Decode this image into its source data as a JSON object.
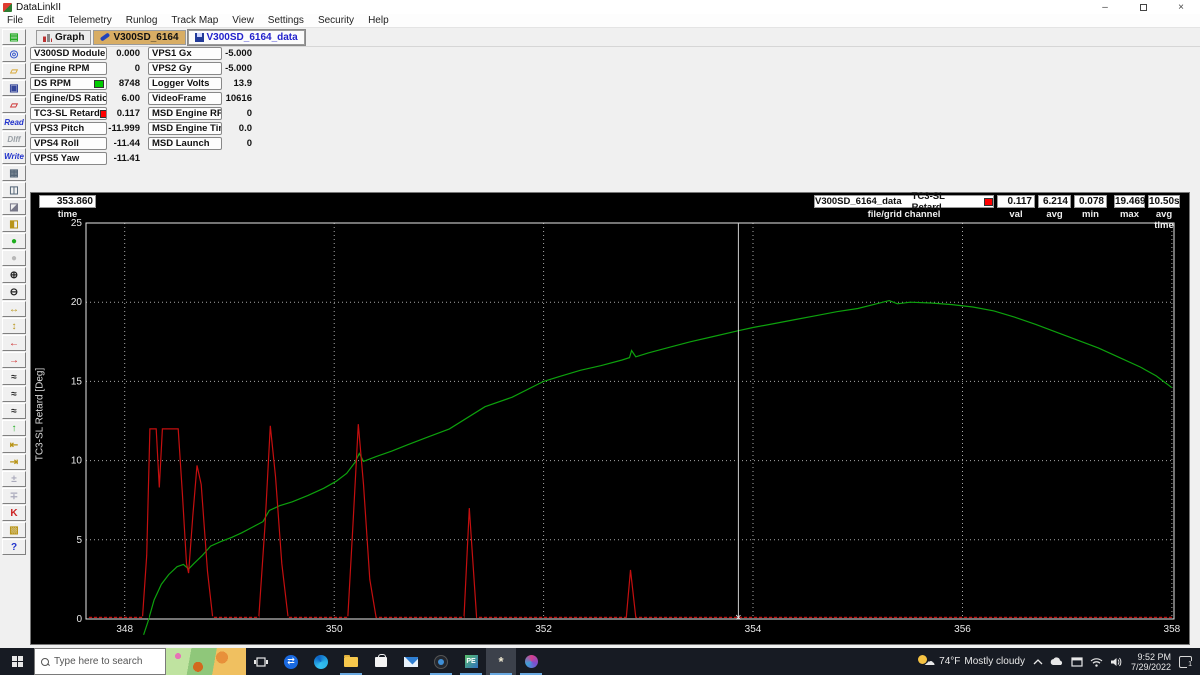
{
  "window": {
    "title": "DataLinkII",
    "minimize": "–",
    "restore": "restore",
    "close": "×"
  },
  "menu": {
    "items": [
      "File",
      "Edit",
      "Telemetry",
      "Runlog",
      "Track Map",
      "View",
      "Settings",
      "Security",
      "Help"
    ]
  },
  "tabs": {
    "graph": "Graph",
    "config": "V300SD_6164",
    "data": "V300SD_6164_data"
  },
  "side_toolbar": [
    {
      "name": "new-file-icon",
      "glyph": "▤",
      "color": "#22aa22"
    },
    {
      "name": "track-map-icon",
      "glyph": "◎",
      "color": "#3355cc"
    },
    {
      "name": "open-file-icon",
      "glyph": "▱",
      "color": "#d8a838"
    },
    {
      "name": "save-icon",
      "glyph": "▣",
      "color": "#334499"
    },
    {
      "name": "open-run-icon",
      "glyph": "▱",
      "color": "#cc3333"
    },
    {
      "name": "read-button",
      "text": "Read",
      "color": "#2233cc"
    },
    {
      "name": "diff-button",
      "text": "DIff",
      "color": "#9aa0a6"
    },
    {
      "name": "write-button",
      "text": "Write",
      "color": "#2233cc"
    },
    {
      "name": "print-icon",
      "glyph": "▦",
      "color": "#556677"
    },
    {
      "name": "copy-icon",
      "glyph": "◫",
      "color": "#556677"
    },
    {
      "name": "erase-icon",
      "glyph": "◪",
      "color": "#778"
    },
    {
      "name": "pane-layout-icon",
      "glyph": "◧",
      "color": "#b89418"
    },
    {
      "name": "green-light-icon",
      "glyph": "●",
      "color": "#1fae1f"
    },
    {
      "name": "gray-light-icon",
      "glyph": "●",
      "color": "#b8b8b8"
    },
    {
      "name": "zoom-in-icon",
      "glyph": "⊕",
      "color": "#222"
    },
    {
      "name": "zoom-out-icon",
      "glyph": "⊖",
      "color": "#222"
    },
    {
      "name": "full-scale-icon",
      "glyph": "↔",
      "color": "#b89418"
    },
    {
      "name": "auto-scale-icon",
      "glyph": "↕",
      "color": "#b89418"
    },
    {
      "name": "shift-left-icon",
      "glyph": "←",
      "color": "#cc2222"
    },
    {
      "name": "shift-right-icon",
      "glyph": "→",
      "color": "#cc2222"
    },
    {
      "name": "min-marker-icon",
      "glyph": "≈",
      "color": "#222"
    },
    {
      "name": "max-marker-icon",
      "glyph": "≈",
      "color": "#222"
    },
    {
      "name": "avg-marker-icon",
      "glyph": "≈",
      "color": "#222"
    },
    {
      "name": "upload-icon",
      "glyph": "↑",
      "color": "#1fae1f"
    },
    {
      "name": "pan-left-icon",
      "glyph": "⇤",
      "color": "#b89418"
    },
    {
      "name": "pan-right-icon",
      "glyph": "⇥",
      "color": "#b89418"
    },
    {
      "name": "zoom-box-plus-icon",
      "glyph": "±",
      "color": "#aab"
    },
    {
      "name": "zoom-box-minus-icon",
      "glyph": "∓",
      "color": "#aab"
    },
    {
      "name": "runlog-k-icon",
      "glyph": "K",
      "color": "#cc2222"
    },
    {
      "name": "map-chart-icon",
      "glyph": "▧",
      "color": "#b89418"
    },
    {
      "name": "help-icon",
      "glyph": "?",
      "color": "#2233cc"
    }
  ],
  "channels": {
    "left": [
      {
        "label": "V300SD Module",
        "value": "0.000"
      },
      {
        "label": "Engine RPM",
        "value": "0"
      },
      {
        "label": "DS RPM",
        "value": "8748",
        "swatch": "#00cc00"
      },
      {
        "label": "Engine/DS Ratio",
        "value": "6.00"
      },
      {
        "label": "TC3-SL Retard",
        "value": "0.117",
        "swatch": "#ff0000"
      },
      {
        "label": "VPS3 Pitch",
        "value": "-11.999"
      },
      {
        "label": "VPS4 Roll",
        "value": "-11.44"
      },
      {
        "label": "VPS5 Yaw",
        "value": "-11.41"
      }
    ],
    "right": [
      {
        "label": "VPS1 Gx",
        "value": "-5.000"
      },
      {
        "label": "VPS2 Gy",
        "value": "-5.000"
      },
      {
        "label": "Logger Volts",
        "value": "13.9"
      },
      {
        "label": "VideoFrame",
        "value": "10616"
      },
      {
        "label": "MSD Engine RPM",
        "value": "0"
      },
      {
        "label": "MSD Engine Timing",
        "value": "0.0"
      },
      {
        "label": "MSD Launch",
        "value": "0"
      }
    ]
  },
  "graph_header": {
    "time_value": "353.860",
    "time_label": "time",
    "file_name": "V300SD_6164_data",
    "channel_name": "TC3-SL Retard",
    "swatch": "#ff0000",
    "sub_label": "file/grid channel",
    "stats": [
      {
        "value": "0.117",
        "label": "val"
      },
      {
        "value": "6.214",
        "label": "avg"
      },
      {
        "value": "0.078",
        "label": "min"
      },
      {
        "value": "19.469",
        "label": "max"
      },
      {
        "value": "10.50s",
        "label": "avg time"
      }
    ]
  },
  "chart_data": {
    "type": "line",
    "title": "",
    "xlabel": "time",
    "ylabel": "TC3-SL Retard [Deg]",
    "xlim": [
      347.63,
      358.02
    ],
    "ylim": [
      0,
      25
    ],
    "x_ticks": [
      348,
      350,
      352,
      354,
      356,
      358
    ],
    "y_ticks": [
      0,
      5,
      10,
      15,
      20,
      25
    ],
    "grid": true,
    "cursor_time": 353.86,
    "cursor_value": 0.117,
    "series": [
      {
        "name": "DS RPM trace",
        "color": "#0da10d",
        "points": [
          [
            348.18,
            -1.0
          ],
          [
            348.22,
            -0.2
          ],
          [
            348.28,
            1.2
          ],
          [
            348.35,
            2.2
          ],
          [
            348.42,
            2.8
          ],
          [
            348.5,
            3.3
          ],
          [
            348.56,
            3.45
          ],
          [
            348.61,
            3.15
          ],
          [
            348.66,
            3.5
          ],
          [
            348.74,
            4.0
          ],
          [
            348.82,
            4.6
          ],
          [
            348.92,
            4.9
          ],
          [
            349.02,
            5.15
          ],
          [
            349.12,
            5.45
          ],
          [
            349.22,
            5.8
          ],
          [
            349.32,
            6.15
          ],
          [
            349.38,
            6.85
          ],
          [
            349.48,
            7.15
          ],
          [
            349.6,
            7.4
          ],
          [
            349.75,
            7.8
          ],
          [
            349.9,
            8.25
          ],
          [
            350.02,
            8.7
          ],
          [
            350.12,
            9.2
          ],
          [
            350.2,
            9.9
          ],
          [
            350.24,
            10.45
          ],
          [
            350.28,
            9.95
          ],
          [
            350.4,
            10.25
          ],
          [
            350.55,
            10.6
          ],
          [
            350.7,
            11.0
          ],
          [
            350.9,
            11.5
          ],
          [
            351.1,
            12.0
          ],
          [
            351.44,
            13.4
          ],
          [
            351.7,
            14.0
          ],
          [
            352.0,
            15.0
          ],
          [
            352.15,
            15.3
          ],
          [
            352.35,
            15.7
          ],
          [
            352.55,
            16.0
          ],
          [
            352.75,
            16.35
          ],
          [
            352.82,
            16.5
          ],
          [
            352.84,
            16.95
          ],
          [
            352.88,
            16.55
          ],
          [
            353.0,
            16.8
          ],
          [
            353.2,
            17.15
          ],
          [
            353.4,
            17.5
          ],
          [
            353.6,
            17.8
          ],
          [
            353.86,
            18.2
          ],
          [
            354.0,
            18.4
          ],
          [
            354.2,
            18.65
          ],
          [
            354.4,
            18.9
          ],
          [
            354.6,
            19.15
          ],
          [
            354.8,
            19.4
          ],
          [
            355.0,
            19.6
          ],
          [
            355.15,
            19.85
          ],
          [
            355.3,
            20.1
          ],
          [
            355.38,
            19.9
          ],
          [
            355.5,
            20.0
          ],
          [
            355.7,
            19.95
          ],
          [
            355.9,
            19.85
          ],
          [
            356.1,
            19.7
          ],
          [
            356.3,
            19.45
          ],
          [
            356.5,
            19.05
          ],
          [
            356.7,
            18.6
          ],
          [
            356.9,
            18.1
          ],
          [
            357.1,
            17.6
          ],
          [
            357.3,
            17.1
          ],
          [
            357.5,
            16.5
          ],
          [
            357.7,
            15.9
          ],
          [
            357.85,
            15.35
          ],
          [
            358.0,
            14.6
          ]
        ]
      },
      {
        "name": "TC3-SL Retard trace",
        "color": "#c40f0f",
        "points": [
          [
            347.65,
            0.1
          ],
          [
            348.17,
            0.1
          ],
          [
            348.21,
            4.0
          ],
          [
            348.24,
            12.0
          ],
          [
            348.3,
            12.0
          ],
          [
            348.33,
            8.3
          ],
          [
            348.36,
            12.0
          ],
          [
            348.51,
            12.0
          ],
          [
            348.55,
            8.0
          ],
          [
            348.59,
            3.5
          ],
          [
            348.61,
            2.9
          ],
          [
            348.65,
            6.5
          ],
          [
            348.69,
            9.7
          ],
          [
            348.73,
            8.5
          ],
          [
            348.79,
            3.0
          ],
          [
            348.84,
            0.1
          ],
          [
            349.28,
            0.1
          ],
          [
            349.34,
            6.0
          ],
          [
            349.39,
            12.2
          ],
          [
            349.44,
            9.0
          ],
          [
            349.5,
            3.5
          ],
          [
            349.56,
            0.1
          ],
          [
            350.13,
            0.1
          ],
          [
            350.18,
            6.0
          ],
          [
            350.23,
            12.3
          ],
          [
            350.28,
            8.5
          ],
          [
            350.34,
            2.5
          ],
          [
            350.4,
            0.1
          ],
          [
            351.24,
            0.1
          ],
          [
            351.29,
            7.0
          ],
          [
            351.36,
            0.1
          ],
          [
            352.79,
            0.1
          ],
          [
            352.83,
            3.1
          ],
          [
            352.88,
            0.1
          ],
          [
            358.0,
            0.1
          ]
        ]
      }
    ]
  },
  "taskbar": {
    "search_placeholder": "Type here to search",
    "apps": [
      {
        "name": "task-view-icon",
        "kind": "taskview"
      },
      {
        "name": "teamviewer-icon",
        "kind": "teamviewer"
      },
      {
        "name": "edge-icon",
        "kind": "edge"
      },
      {
        "name": "file-explorer-icon",
        "kind": "folder",
        "running": true
      },
      {
        "name": "store-icon",
        "kind": "bag"
      },
      {
        "name": "mail-icon",
        "kind": "mail"
      },
      {
        "name": "capture-icon",
        "kind": "lens",
        "running": true
      },
      {
        "name": "pe-icon",
        "kind": "pe",
        "label": "PE",
        "running": true
      },
      {
        "name": "datalink-icon",
        "kind": "spark",
        "glyph": "*",
        "active": true,
        "running": true
      },
      {
        "name": "paint-icon",
        "kind": "paint",
        "running": true
      }
    ],
    "tray": {
      "temperature": "74°F",
      "condition": "Mostly cloudy",
      "time": "9:52 PM",
      "date": "7/29/2022",
      "notification_count": "1"
    }
  }
}
